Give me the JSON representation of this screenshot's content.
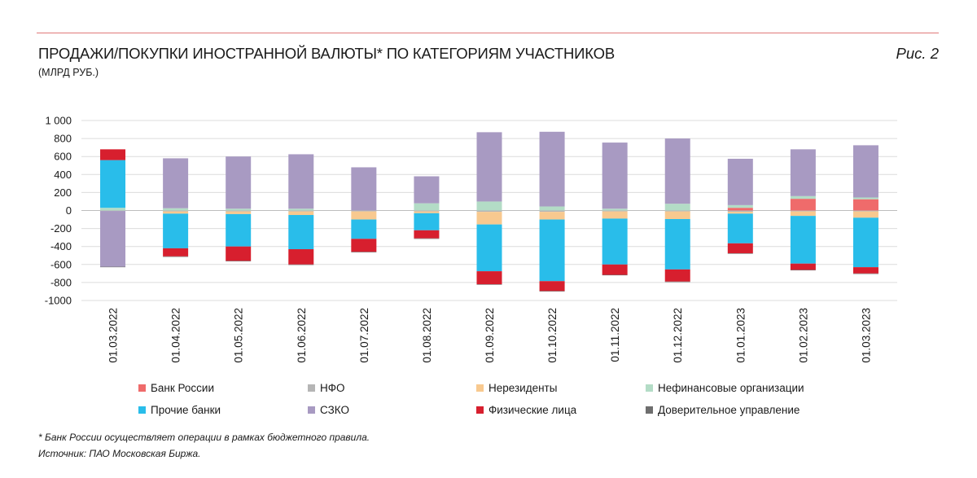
{
  "header": {
    "title": "ПРОДАЖИ/ПОКУПКИ ИНОСТРАННОЙ ВАЛЮТЫ* ПО КАТЕГОРИЯМ УЧАСТНИКОВ",
    "subtitle": "(МЛРД РУБ.)",
    "figure_label": "Рис. 2"
  },
  "footer": {
    "footnote": "* Банк России осуществляет операции в рамках бюджетного правила.",
    "source": "Источник: ПАО Московская Биржа."
  },
  "chart_data": {
    "type": "bar",
    "stacked": true,
    "title": "ПРОДАЖИ/ПОКУПКИ ИНОСТРАННОЙ ВАЛЮТЫ* ПО КАТЕГОРИЯМ УЧАСТНИКОВ",
    "ylim": [
      -1000,
      1000
    ],
    "yticks": [
      1000,
      800,
      600,
      400,
      200,
      0,
      -200,
      -400,
      -600,
      -800,
      -1000
    ],
    "ytick_labels": [
      "1 000",
      "800",
      "600",
      "400",
      "200",
      "0",
      "-200",
      "-400",
      "-600",
      "-800",
      "-1000"
    ],
    "grid": true,
    "legend_position": "bottom",
    "categories": [
      "01.03.2022",
      "01.04.2022",
      "01.05.2022",
      "01.06.2022",
      "01.07.2022",
      "01.08.2022",
      "01.09.2022",
      "01.10.2022",
      "01.11.2022",
      "01.12.2022",
      "01.01.2023",
      "01.02.2023",
      "01.03.2023"
    ],
    "series": [
      {
        "name": "Банк России",
        "color": "#ef6b6b",
        "values": [
          0,
          0,
          0,
          0,
          0,
          0,
          0,
          0,
          0,
          0,
          30,
          130,
          125
        ]
      },
      {
        "name": "НФО",
        "color": "#b5b5b5",
        "values": [
          -5,
          -10,
          -10,
          -10,
          -10,
          -10,
          -15,
          -15,
          -10,
          -10,
          -15,
          -10,
          -10
        ]
      },
      {
        "name": "Нерезиденты",
        "color": "#f8c98f",
        "values": [
          0,
          -25,
          -30,
          -40,
          -90,
          -20,
          -140,
          -85,
          -80,
          -85,
          -20,
          -50,
          -70
        ]
      },
      {
        "name": "Нефинансовые организации",
        "color": "#b3dcc6",
        "values": [
          30,
          25,
          20,
          20,
          0,
          80,
          100,
          45,
          20,
          75,
          30,
          30,
          20
        ]
      },
      {
        "name": "Прочие банки",
        "color": "#29bdea",
        "values": [
          530,
          -385,
          -360,
          -380,
          -215,
          -190,
          -520,
          -685,
          -510,
          -560,
          -330,
          -530,
          -550
        ]
      },
      {
        "name": "СЗКО",
        "color": "#a89ac2",
        "values": [
          -620,
          555,
          580,
          605,
          480,
          300,
          770,
          830,
          735,
          725,
          515,
          520,
          580
        ]
      },
      {
        "name": "Физические лица",
        "color": "#d71f2e",
        "values": [
          120,
          -90,
          -160,
          -170,
          -145,
          -90,
          -145,
          -110,
          -115,
          -135,
          -110,
          -70,
          -70
        ]
      },
      {
        "name": "Доверительное управление",
        "color": "#6e6e6e",
        "values": [
          -5,
          -5,
          -5,
          -5,
          -5,
          -5,
          -5,
          -5,
          -5,
          -5,
          -5,
          -5,
          -5
        ]
      }
    ]
  }
}
